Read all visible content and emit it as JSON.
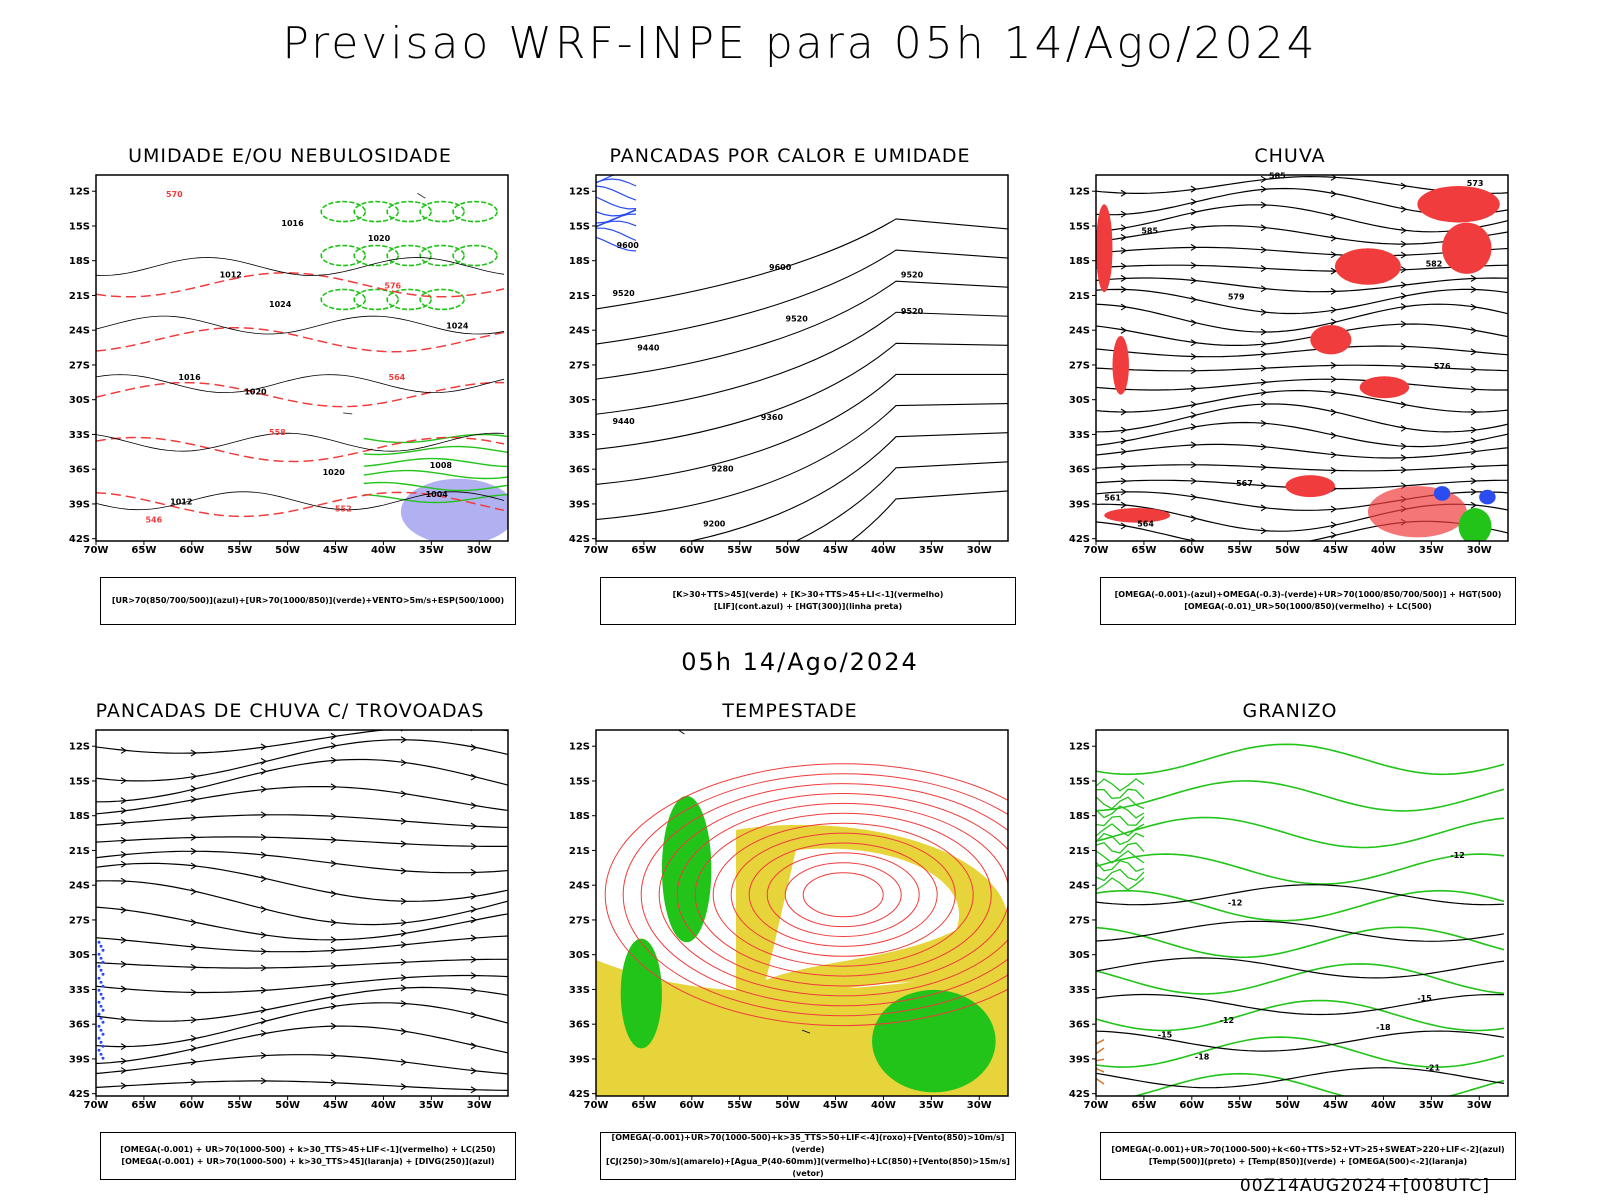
{
  "title": "Previsao WRF-INPE  para 05h 14/Ago/2024",
  "mid_title": "05h 14/Ago/2024",
  "footer": "00Z14AUG2024+[008UTC]",
  "axes": {
    "lat_ticks": [
      "12S",
      "15S",
      "18S",
      "21S",
      "24S",
      "27S",
      "30S",
      "33S",
      "36S",
      "39S",
      "42S"
    ],
    "lon_ticks": [
      "70W",
      "65W",
      "60W",
      "55W",
      "50W",
      "45W",
      "40W",
      "35W",
      "30W"
    ]
  },
  "panels": [
    {
      "title": "UMIDADE E/OU NEBULOSIDADE",
      "legend": [
        "[UR>70(850/700/500)](azul)+[UR>70(1000/850)](verde)+VENTO>5m/s+ESP(500/1000)"
      ],
      "contour_labels": [
        "1016",
        "1012",
        "1020",
        "1024",
        "1020",
        "1024",
        "1020",
        "1016",
        "1012",
        "1008",
        "1004",
        "570",
        "576",
        "564",
        "558",
        "552",
        "546"
      ]
    },
    {
      "title": "PANCADAS POR CALOR E UMIDADE",
      "legend": [
        "[K>30+TTS>45](verde) + [K>30+TTS>45+LI<-1](vermelho)",
        "[LIF](cont.azul) + [HGT(300)](linha preta)"
      ],
      "contour_labels": [
        "9600",
        "9600",
        "9520",
        "9520",
        "9520",
        "9520",
        "9440",
        "9440",
        "9360",
        "9280",
        "9200"
      ]
    },
    {
      "title": "CHUVA",
      "legend": [
        "[OMEGA(-0.001)-(azul)+OMEGA(-0.3)-(verde)+UR>70(1000/850/700/500)] + HGT(500)",
        "[OMEGA(-0.01)_UR>50(1000/850)(vermelho) + LC(500)"
      ],
      "contour_labels": [
        "585",
        "585",
        "582",
        "579",
        "576",
        "573",
        "567",
        "564",
        "561"
      ]
    },
    {
      "title": "PANCADAS DE CHUVA C/ TROVOADAS",
      "legend": [
        "[OMEGA(-0.001) + UR>70(1000-500) + k>30_TTS>45+LIF<-1](vermelho) + LC(250)",
        "[OMEGA(-0.001) + UR>70(1000-500) + k>30_TTS>45](laranja) + [DIVG(250)](azul)"
      ],
      "contour_labels": []
    },
    {
      "title": "TEMPESTADE",
      "legend": [
        "[OMEGA(-0.001)+UR>70(1000-500)+k>35_TTS>50+LIF<-4](roxo)+[Vento(850)>10m/s](verde)",
        "[CJ(250)>30m/s](amarelo)+[Agua_P(40-60mm)](vermelho)+LC(850)+[Vento(850)>15m/s](vetor)"
      ],
      "contour_labels": []
    },
    {
      "title": "GRANIZO",
      "legend": [
        "[OMEGA(-0.001)+UR>70(1000-500)+k<60+TTS>52+VT>25+SWEAT>220+LIF<-2](azul)",
        "[Temp(500)](preto) + [Temp(850)](verde) + [OMEGA(500)<-2](laranja)"
      ],
      "contour_labels": [
        "-12",
        "-12",
        "-12",
        "-15",
        "-18",
        "-21",
        "-15",
        "-18"
      ]
    }
  ],
  "colors": {
    "red": "#f03c3c",
    "green": "#22c41a",
    "blue": "#2a4cf0",
    "yellow": "#e6d43a",
    "lavender": "#a9a8f0",
    "orange": "#d8782c"
  }
}
